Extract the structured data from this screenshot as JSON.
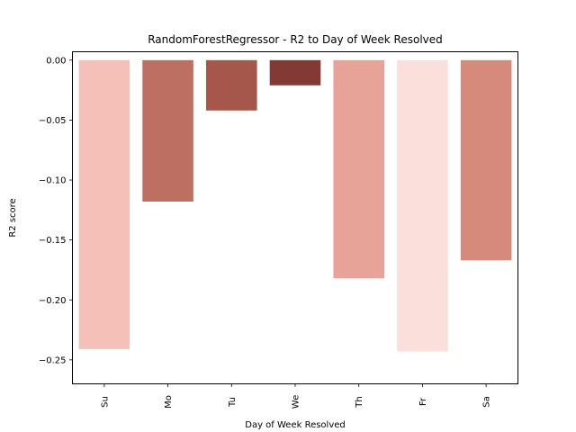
{
  "chart_data": {
    "type": "bar",
    "title": "RandomForestRegressor - R2 to Day of Week Resolved",
    "xlabel": "Day of Week Resolved",
    "ylabel": "R2 score",
    "categories": [
      "Su",
      "Mo",
      "Tu",
      "We",
      "Th",
      "Fr",
      "Sa"
    ],
    "values": [
      -0.241,
      -0.118,
      -0.042,
      -0.021,
      -0.182,
      -0.243,
      -0.167
    ],
    "colors": [
      "#f4c0b7",
      "#bd6f62",
      "#a4574a",
      "#843a34",
      "#e8a398",
      "#fbdfda",
      "#d58a7c"
    ],
    "ylim": [
      -0.27,
      0.007
    ],
    "yticks": [
      0.0,
      -0.05,
      -0.1,
      -0.15,
      -0.2,
      -0.25
    ],
    "ytick_labels": [
      "0.00",
      "−0.05",
      "−0.10",
      "−0.15",
      "−0.20",
      "−0.25"
    ],
    "grid": false,
    "legend": false
  }
}
